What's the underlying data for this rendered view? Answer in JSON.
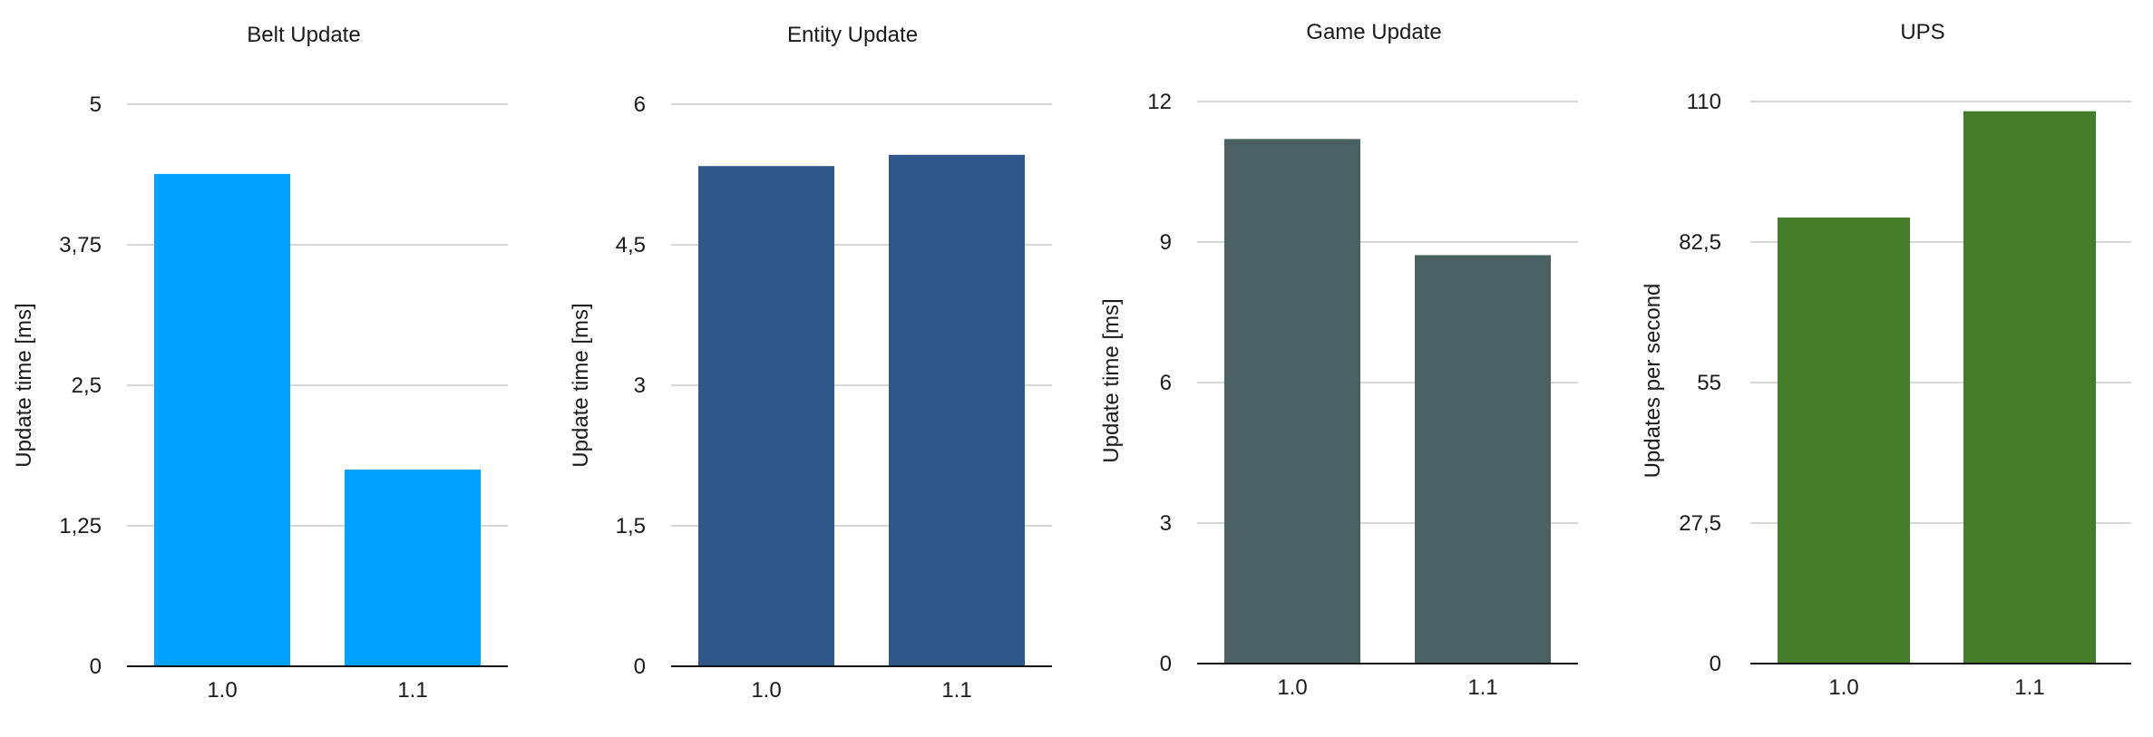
{
  "chart_data": [
    {
      "type": "bar",
      "title": "Belt Update",
      "categories": [
        "1.0",
        "1.1"
      ],
      "values": [
        4.38,
        1.75
      ],
      "ylabel": "Update time [ms]",
      "yticks": [
        "0",
        "1,25",
        "2,5",
        "3,75",
        "5"
      ],
      "ylim": [
        0,
        5
      ],
      "grid": true,
      "color": "#00A1FF"
    },
    {
      "type": "bar",
      "title": "Entity Update",
      "categories": [
        "1.0",
        "1.1"
      ],
      "values": [
        5.34,
        5.46
      ],
      "ylabel": "Update time [ms]",
      "yticks": [
        "0",
        "1,5",
        "3",
        "4,5",
        "6"
      ],
      "ylim": [
        0,
        6
      ],
      "grid": true,
      "color": "#30578A"
    },
    {
      "type": "bar",
      "title": "Game Update",
      "categories": [
        "1.0",
        "1.1"
      ],
      "values": [
        11.2,
        8.72
      ],
      "ylabel": "Update time [ms]",
      "yticks": [
        "0",
        "3",
        "6",
        "9",
        "12"
      ],
      "ylim": [
        0,
        12
      ],
      "grid": true,
      "color": "#4A6162"
    },
    {
      "type": "bar",
      "title": "UPS",
      "categories": [
        "1.0",
        "1.1"
      ],
      "values": [
        87.3,
        108.1
      ],
      "ylabel": "Updates per second",
      "yticks": [
        "0",
        "27,5",
        "55",
        "82,5",
        "110"
      ],
      "ylim": [
        0,
        110
      ],
      "grid": true,
      "color": "#437D29"
    }
  ]
}
